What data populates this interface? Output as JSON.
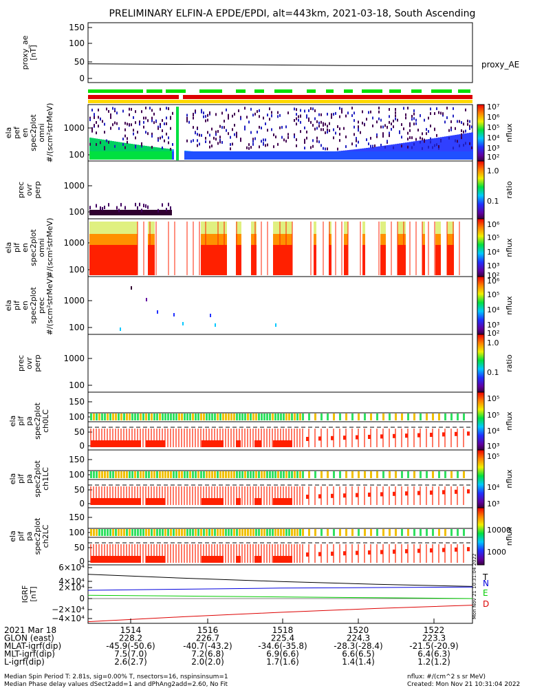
{
  "title": "PRELIMINARY ELFIN-A EPDE/EPDI, alt=443km, 2021-03-18, South Ascending",
  "colors": {
    "bar_green": "#00e000",
    "bar_red": "#dd0000",
    "bar_yellow": "#ffd800",
    "igrf_T": "#000000",
    "igrf_N": "#0000dd",
    "igrf_E": "#00cc00",
    "igrf_D": "#dd0000"
  },
  "panels": [
    {
      "id": "proxy_ae",
      "ylabel": [
        "proxy_ae",
        "[nT]"
      ],
      "ticks": [
        "150",
        "100",
        "50",
        "0"
      ],
      "side_label": "proxy_AE"
    },
    {
      "id": "ela_pef_omni",
      "ylabel": [
        "ela",
        "pef",
        "en",
        "spec2plot",
        "omni",
        "#/(scm²strMeV)"
      ],
      "ticks": [
        "1000",
        "100"
      ],
      "cb_ticks": [
        "10⁷",
        "10⁶",
        "10⁵",
        "10⁴",
        "10³",
        "10²"
      ],
      "cb_label": "nflux"
    },
    {
      "id": "pef_ratio",
      "ylabel": [
        "prec",
        "ovr",
        "perp"
      ],
      "ticks": [
        "1000",
        "100"
      ],
      "cb_ticks": [
        "1.0",
        "0.1"
      ],
      "cb_label": "ratio"
    },
    {
      "id": "ela_pif_omni",
      "ylabel": [
        "ela",
        "pif",
        "en",
        "spec2plot",
        "omni",
        "#/(scm²strMeV)"
      ],
      "ticks": [
        "1000",
        "100"
      ],
      "cb_ticks": [
        "10⁶",
        "10⁵",
        "10⁴",
        "10³",
        "10²"
      ],
      "cb_label": "nflux"
    },
    {
      "id": "ela_pif_prec",
      "ylabel": [
        "ela",
        "pif",
        "en",
        "spec2plot",
        "prec",
        "#/(scm²strMeV)"
      ],
      "ticks": [
        "1000",
        "100"
      ],
      "cb_ticks": [
        "10⁶",
        "10⁵",
        "10⁴",
        "10³",
        "10²"
      ],
      "cb_label": "nflux"
    },
    {
      "id": "pif_ratio",
      "ylabel": [
        "prec",
        "ovr",
        "perp"
      ],
      "ticks": [
        "1000",
        "100"
      ],
      "cb_ticks": [
        "1.0",
        "0.1"
      ],
      "cb_label": "ratio"
    },
    {
      "id": "pa_ch0",
      "ylabel": [
        "ela",
        "pif",
        "pa",
        "spec2plot",
        "ch0LC"
      ],
      "ticks": [
        "150",
        "100",
        "50",
        "0"
      ],
      "cb_ticks": [
        "10⁵",
        "10⁵",
        "10⁴",
        "10³"
      ],
      "cb_label": "nflux"
    },
    {
      "id": "pa_ch1",
      "ylabel": [
        "ela",
        "pif",
        "pa",
        "spec2plot",
        "ch1LC"
      ],
      "ticks": [
        "150",
        "100",
        "50",
        "0"
      ],
      "cb_ticks": [
        "10⁵",
        "10⁴",
        "10³"
      ],
      "cb_label": "nflux"
    },
    {
      "id": "pa_ch2",
      "ylabel": [
        "ela",
        "pif",
        "pa",
        "spec2plot",
        "ch2LC"
      ],
      "ticks": [
        "150",
        "100",
        "50",
        "0"
      ],
      "cb_ticks": [
        "10000",
        "1000"
      ],
      "cb_label": "nflux"
    },
    {
      "id": "igrf",
      "ylabel": [
        "IGRF",
        "[nT]"
      ],
      "ticks": [
        "6×10⁴",
        "4×10⁴",
        "2×10⁴",
        "0",
        "−2×10⁴",
        "−4×10⁴"
      ],
      "legend": [
        "T",
        "N",
        "E",
        "D"
      ]
    }
  ],
  "timestamp_vertical": "Mon Nov 21 10:31:04 2022",
  "x_axis": {
    "ticks": [
      "1514",
      "1516",
      "1518",
      "1520",
      "1522"
    ],
    "rows": [
      {
        "label": "2021 Mar 18",
        "values": [
          "1514",
          "1516",
          "1518",
          "1520",
          "1522"
        ]
      },
      {
        "label": "GLON (east)",
        "values": [
          "228.2",
          "226.7",
          "225.4",
          "224.3",
          "223.3"
        ]
      },
      {
        "label": "MLAT-igrf(dip)",
        "values": [
          "-45.9(-50.6)",
          "-40.7(-43.2)",
          "-34.6(-35.8)",
          "-28.3(-28.4)",
          "-21.5(-20.9)"
        ]
      },
      {
        "label": "MLT-igrf(dip)",
        "values": [
          "7.5(7.0)",
          "7.2(6.8)",
          "6.9(6.6)",
          "6.6(6.5)",
          "6.4(6.3)"
        ]
      },
      {
        "label": "L-igrf(dip)",
        "values": [
          "2.6(2.7)",
          "2.0(2.0)",
          "1.7(1.6)",
          "1.4(1.4)",
          "1.2(1.2)"
        ]
      }
    ]
  },
  "footer": {
    "left1": "Median Spin Period T: 2.81s, sig=0.00% T, nsectors=16, nspinsinsum=1",
    "left2": "Median Phase delay values dSect2add=1 and dPhAng2add=2.60, No Fit",
    "right1": "nflux: #/(cm^2 s sr MeV)",
    "right2": "Created: Mon Nov 21 10:31:04 2022"
  },
  "chart_data": {
    "type": "heatmap",
    "title": "PRELIMINARY ELFIN-A EPDE/EPDI, alt=443km, 2021-03-18, South Ascending",
    "x_range": [
      "1513:00",
      "1522:50"
    ],
    "proxy_ae": {
      "ylim": [
        0,
        150
      ],
      "values": [
        43,
        41,
        38,
        37
      ]
    },
    "igrf": {
      "ylim": [
        -50000,
        60000
      ],
      "T": [
        44000,
        37000,
        31000,
        26000,
        22000
      ],
      "N": [
        15000,
        17000,
        19000,
        20000,
        21000
      ],
      "E": [
        6000,
        4500,
        3000,
        1500,
        0
      ],
      "D": [
        -42000,
        -33000,
        -25000,
        -18000,
        -12000
      ]
    }
  }
}
